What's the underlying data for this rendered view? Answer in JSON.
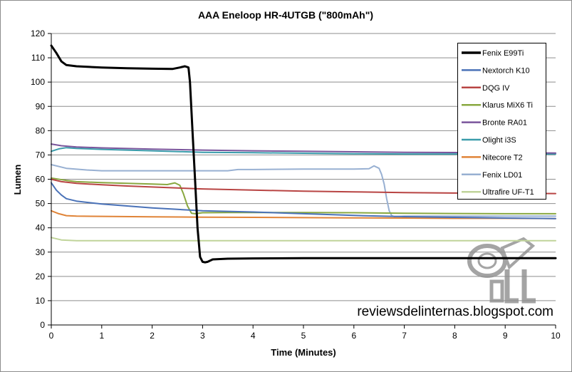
{
  "chart_data": {
    "type": "line",
    "title": "AAA Eneloop HR-4UTGB (\"800mAh\")",
    "xlabel": "Time (Minutes)",
    "ylabel": "Lumen",
    "xlim": [
      0,
      10
    ],
    "ylim": [
      0,
      120
    ],
    "xticks": [
      0,
      1,
      2,
      3,
      4,
      5,
      6,
      7,
      8,
      9,
      10
    ],
    "yticks": [
      0,
      10,
      20,
      30,
      40,
      50,
      60,
      70,
      80,
      90,
      100,
      110,
      120
    ],
    "grid": "horizontal",
    "legend_position": "top-right",
    "series": [
      {
        "name": "Fenix E99Ti",
        "color": "#000000",
        "width": 3,
        "x": [
          0,
          0.1,
          0.2,
          0.3,
          0.5,
          1,
          1.5,
          2,
          2.4,
          2.55,
          2.65,
          2.72,
          2.75,
          2.8,
          2.85,
          2.9,
          2.95,
          3.0,
          3.05,
          3.1,
          3.2,
          3.5,
          4,
          5,
          6,
          7,
          8,
          9,
          10
        ],
        "y": [
          115,
          112,
          108.5,
          107,
          106.5,
          106,
          105.7,
          105.5,
          105.4,
          106,
          106.5,
          106,
          100,
          80,
          60,
          40,
          28,
          26,
          25.8,
          26,
          27,
          27.3,
          27.4,
          27.5,
          27.5,
          27.5,
          27.5,
          27.5,
          27.5
        ]
      },
      {
        "name": "Nextorch K10",
        "color": "#4a72b8",
        "width": 2,
        "x": [
          0,
          0.1,
          0.2,
          0.3,
          0.5,
          1,
          1.5,
          2,
          2.5,
          3,
          4,
          5,
          6,
          7,
          8,
          9,
          10
        ],
        "y": [
          58.5,
          55.5,
          53.5,
          52,
          51,
          49.8,
          49,
          48.2,
          47.6,
          47,
          46.5,
          45.8,
          45.1,
          44.6,
          44.3,
          44,
          43.8
        ]
      },
      {
        "name": "DQG IV",
        "color": "#b84443",
        "width": 2,
        "x": [
          0,
          0.2,
          0.5,
          1,
          1.5,
          2,
          2.5,
          3,
          4,
          5,
          6,
          7,
          8,
          9,
          10
        ],
        "y": [
          60,
          59,
          58.3,
          57.7,
          57.2,
          56.8,
          56.4,
          56,
          55.5,
          55.1,
          54.8,
          54.5,
          54.3,
          54.2,
          54.1
        ]
      },
      {
        "name": "Klarus MiX6 Ti",
        "color": "#89a840",
        "width": 2,
        "x": [
          0,
          0.3,
          0.5,
          1,
          1.5,
          2,
          2.3,
          2.45,
          2.55,
          2.62,
          2.7,
          2.78,
          2.85,
          3,
          3.5,
          4,
          5,
          6,
          7,
          8,
          9,
          10
        ],
        "y": [
          60.5,
          59.5,
          59,
          58.6,
          58.3,
          58,
          57.8,
          58.5,
          57.5,
          54,
          49,
          46,
          45.8,
          46.2,
          46.3,
          46.3,
          46.3,
          46.2,
          46,
          45.9,
          45.8,
          45.8
        ]
      },
      {
        "name": "Bronte RA01",
        "color": "#7a559c",
        "width": 2,
        "x": [
          0,
          0.2,
          0.5,
          1,
          2,
          3,
          4,
          5,
          6,
          7,
          8,
          9,
          10
        ],
        "y": [
          74.5,
          73.8,
          73.3,
          72.9,
          72.4,
          72,
          71.7,
          71.5,
          71.3,
          71.1,
          71,
          70.9,
          70.8
        ]
      },
      {
        "name": "Olight i3S",
        "color": "#3a9cab",
        "width": 2,
        "x": [
          0,
          0.15,
          0.3,
          0.5,
          1,
          2,
          3,
          4,
          5,
          6,
          7,
          8,
          9,
          10
        ],
        "y": [
          71.5,
          72.5,
          73,
          72.7,
          72.3,
          71.7,
          71.1,
          70.9,
          70.7,
          70.5,
          70.4,
          70.4,
          70.4,
          70.4
        ]
      },
      {
        "name": "Nitecore T2",
        "color": "#e08438",
        "width": 2,
        "x": [
          0,
          0.15,
          0.3,
          0.5,
          1,
          2,
          3,
          4,
          5,
          6,
          7,
          8,
          9,
          10
        ],
        "y": [
          47,
          45.8,
          45,
          44.8,
          44.7,
          44.5,
          44.4,
          44.3,
          44.2,
          44.1,
          44,
          43.9,
          43.9,
          43.8
        ]
      },
      {
        "name": "Fenix LD01",
        "color": "#98b0d2",
        "width": 2,
        "x": [
          0,
          0.3,
          0.7,
          1,
          2,
          3,
          3.5,
          3.7,
          4,
          5,
          6,
          6.3,
          6.4,
          6.5,
          6.55,
          6.6,
          6.65,
          6.7,
          6.75,
          6.8,
          6.9,
          7,
          8,
          9,
          10
        ],
        "y": [
          66,
          64.5,
          63.8,
          63.5,
          63.5,
          63.5,
          63.5,
          64,
          64,
          64.2,
          64.2,
          64.3,
          65.5,
          64.5,
          62,
          58,
          52,
          47,
          45,
          44.6,
          44.7,
          44.8,
          44.8,
          44.8,
          44.8
        ]
      },
      {
        "name": "Ultrafire UF-T1",
        "color": "#c0d49a",
        "width": 2,
        "x": [
          0,
          0.2,
          0.5,
          1,
          2,
          3,
          4,
          5,
          6,
          7,
          8,
          9,
          10
        ],
        "y": [
          36,
          35,
          34.7,
          34.7,
          34.7,
          34.7,
          34.7,
          34.7,
          34.7,
          34.7,
          34.7,
          34.7,
          34.7
        ]
      }
    ],
    "watermark": {
      "text": "reviewsdelinternas.blogspot.com",
      "logo_text": "RDL"
    }
  }
}
